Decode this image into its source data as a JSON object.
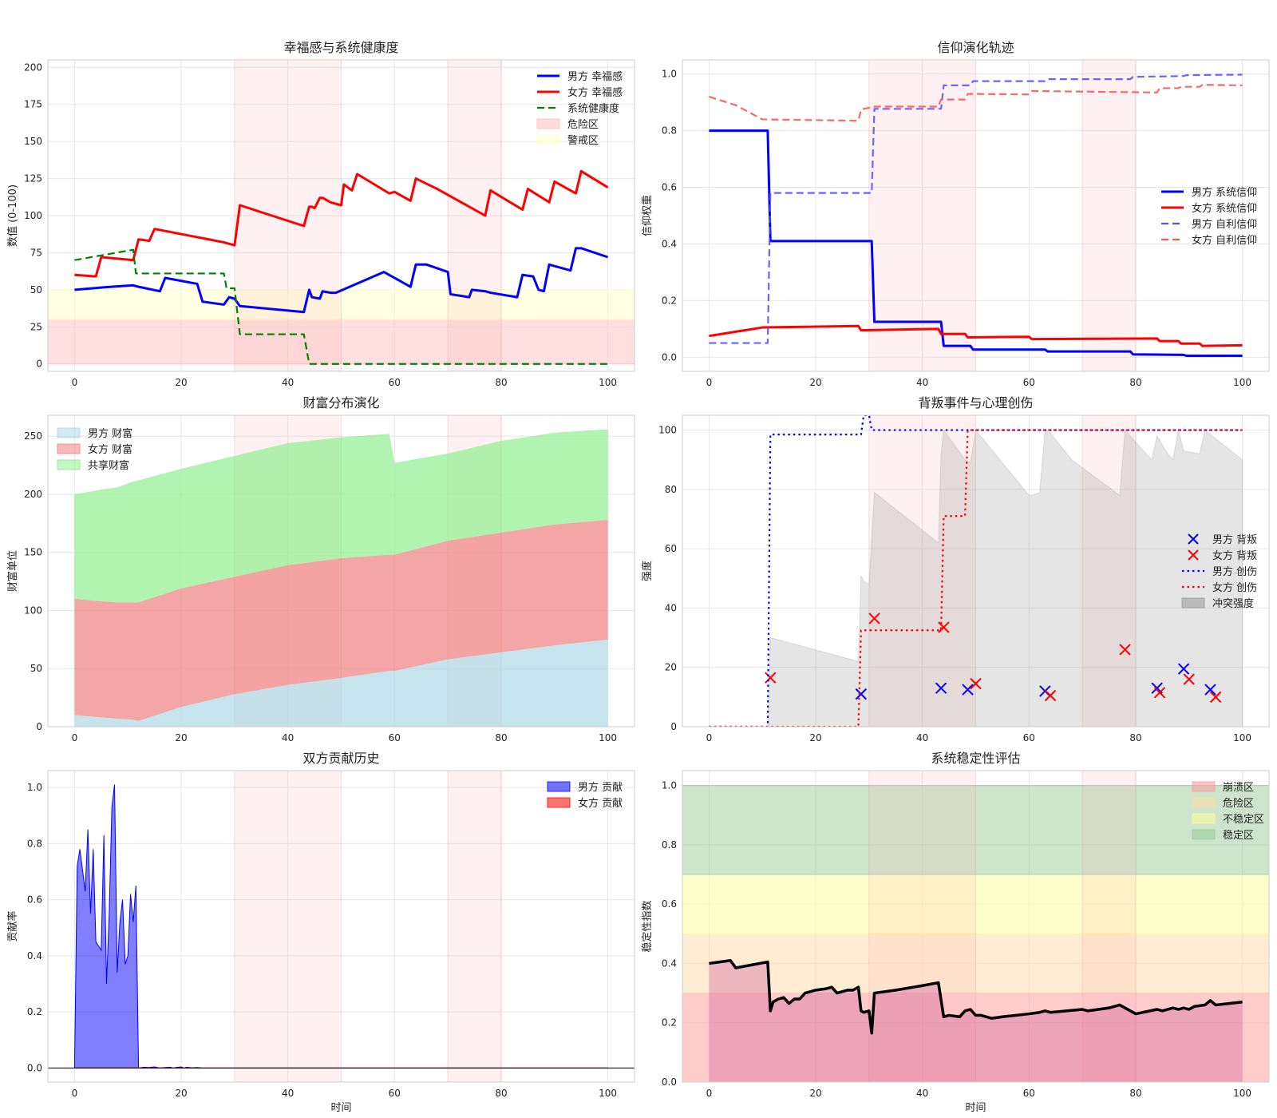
{
  "chart_data": [
    {
      "type": "line",
      "title": "幸福感与系统健康度",
      "xlabel": "",
      "ylabel": "数值 (0-100)",
      "xlim": [
        -5,
        105
      ],
      "ylim": [
        -5,
        205
      ],
      "xticks": [
        0,
        20,
        40,
        60,
        80,
        100
      ],
      "yticks": [
        0,
        25,
        50,
        75,
        100,
        125,
        150,
        175,
        200
      ],
      "grid": true,
      "legend": "top-right",
      "shaded_x_regions": [
        [
          30,
          50
        ],
        [
          70,
          80
        ]
      ],
      "bands": [
        {
          "name": "危险区",
          "y": [
            0,
            30
          ],
          "color": "#ffc0c0"
        },
        {
          "name": "警戒区",
          "y": [
            30,
            50
          ],
          "color": "#ffffc8"
        }
      ],
      "series": [
        {
          "name": "男方 幸福感",
          "color": "#0000ff",
          "style": "solid",
          "x": [
            0,
            5,
            11,
            12,
            16,
            17,
            23,
            24,
            28,
            29,
            30,
            31,
            43,
            44,
            44.5,
            46,
            46.5,
            48,
            49,
            58,
            62,
            63,
            64,
            66,
            70,
            70.5,
            74,
            74.5,
            77,
            78,
            83,
            84,
            86,
            87,
            88,
            89,
            93,
            94,
            95,
            100
          ],
          "y": [
            50,
            51.5,
            53,
            52,
            49,
            58,
            54,
            42,
            40,
            45,
            44,
            39,
            35,
            50,
            45,
            44,
            49,
            48,
            48,
            62,
            54,
            52,
            67,
            67,
            62,
            47,
            45,
            50,
            49,
            48,
            45,
            60,
            59,
            50,
            49,
            67,
            63,
            78,
            78,
            72
          ]
        },
        {
          "name": "女方 幸福感",
          "color": "#ff0000",
          "style": "solid",
          "x": [
            0,
            4,
            5,
            11,
            12,
            14,
            15,
            28,
            29,
            30,
            31,
            43,
            44,
            44.5,
            45,
            46,
            46.5,
            48,
            49,
            50,
            50.5,
            52,
            53,
            59,
            60,
            62,
            63,
            64,
            68,
            77,
            78,
            84,
            85,
            89,
            90,
            94,
            95,
            100
          ],
          "y": [
            60,
            59,
            72,
            70,
            84,
            83,
            91,
            82,
            81,
            80,
            107,
            93,
            106,
            106,
            105,
            112,
            112,
            109,
            108,
            107,
            121,
            117,
            128,
            115,
            116,
            112,
            110,
            125,
            118,
            100,
            117,
            104,
            118,
            109,
            123,
            115,
            130,
            119
          ]
        },
        {
          "name": "系统健康度",
          "color": "#008000",
          "style": "dashed",
          "x": [
            0,
            11,
            11.5,
            28,
            28.5,
            30,
            31,
            43,
            44,
            100
          ],
          "y": [
            70,
            77,
            61,
            61,
            51,
            51,
            20,
            20,
            0,
            0
          ]
        }
      ]
    },
    {
      "type": "line",
      "title": "信仰演化轨迹",
      "xlabel": "",
      "ylabel": "信仰权重",
      "xlim": [
        -5,
        105
      ],
      "ylim": [
        -0.05,
        1.05
      ],
      "xticks": [
        0,
        20,
        40,
        60,
        80,
        100
      ],
      "yticks": [
        0.0,
        0.2,
        0.4,
        0.6,
        0.8,
        1.0
      ],
      "grid": true,
      "legend": "center-right",
      "shaded_x_regions": [
        [
          30,
          50
        ],
        [
          70,
          80
        ]
      ],
      "series": [
        {
          "name": "男方 系统信仰",
          "color": "#0000ff",
          "style": "solid",
          "x": [
            0,
            11,
            11.5,
            30.5,
            31,
            43.5,
            44,
            49,
            49.5,
            63,
            63.5,
            79,
            79.5,
            89,
            89.5,
            100
          ],
          "y": [
            0.8,
            0.8,
            0.41,
            0.41,
            0.125,
            0.125,
            0.04,
            0.04,
            0.027,
            0.027,
            0.02,
            0.02,
            0.01,
            0.008,
            0.005,
            0.005
          ]
        },
        {
          "name": "女方 系统信仰",
          "color": "#ff0000",
          "style": "solid",
          "x": [
            0,
            5,
            10,
            28,
            28.5,
            43,
            43.5,
            48,
            48.5,
            60,
            60.5,
            84,
            84.5,
            88,
            88.5,
            92,
            92.5,
            100
          ],
          "y": [
            0.075,
            0.09,
            0.105,
            0.11,
            0.095,
            0.1,
            0.082,
            0.082,
            0.07,
            0.072,
            0.064,
            0.066,
            0.057,
            0.057,
            0.048,
            0.048,
            0.04,
            0.042
          ]
        },
        {
          "name": "男方 自利信仰",
          "color": "#5555ff",
          "style": "dashed",
          "x": [
            0,
            11,
            11.5,
            30.5,
            31,
            43.5,
            44,
            49,
            49.5,
            63,
            63.5,
            79,
            79.5,
            89,
            89.5,
            100
          ],
          "y": [
            0.05,
            0.05,
            0.58,
            0.58,
            0.877,
            0.877,
            0.96,
            0.96,
            0.975,
            0.975,
            0.982,
            0.982,
            0.99,
            0.993,
            0.996,
            0.998
          ]
        },
        {
          "name": "女方 自利信仰",
          "color": "#ff5555",
          "style": "dashed",
          "x": [
            0,
            5,
            10,
            28,
            28.5,
            31,
            43,
            43.5,
            48,
            48.5,
            60,
            60.5,
            84,
            84.5,
            88,
            88.5,
            92,
            92.5,
            100
          ],
          "y": [
            0.92,
            0.89,
            0.84,
            0.835,
            0.875,
            0.885,
            0.885,
            0.91,
            0.91,
            0.93,
            0.928,
            0.94,
            0.935,
            0.95,
            0.95,
            0.955,
            0.955,
            0.962,
            0.96
          ]
        }
      ]
    },
    {
      "type": "area",
      "title": "财富分布演化",
      "xlabel": "",
      "ylabel": "财富单位",
      "xlim": [
        -5,
        105
      ],
      "ylim": [
        0,
        268
      ],
      "xticks": [
        0,
        20,
        40,
        60,
        80,
        100
      ],
      "yticks": [
        0,
        50,
        100,
        150,
        200,
        250
      ],
      "grid": true,
      "legend": "top-left",
      "shaded_x_regions": [
        [
          30,
          50
        ],
        [
          70,
          80
        ]
      ],
      "stacked": true,
      "x": [
        0,
        5,
        8,
        11,
        12,
        20,
        30,
        40,
        50,
        59,
        60,
        70,
        80,
        90,
        100
      ],
      "series": [
        {
          "name": "男方 财富",
          "color": "#add8e6",
          "values": [
            10,
            8,
            7,
            6,
            5,
            17,
            28,
            36,
            42,
            48,
            48,
            58,
            64,
            70,
            75
          ]
        },
        {
          "name": "女方 财富",
          "color": "#f08080",
          "values": [
            100,
            100,
            100,
            101,
            102,
            102,
            101,
            103,
            103,
            100,
            100,
            102,
            103,
            104,
            103
          ]
        },
        {
          "name": "共享财富",
          "color": "#90ee90",
          "values": [
            90,
            96,
            99,
            104,
            105,
            103,
            104,
            105,
            104,
            104,
            79,
            75,
            79,
            79,
            78
          ]
        }
      ]
    },
    {
      "type": "scatter",
      "title": "背叛事件与心理创伤",
      "xlabel": "",
      "ylabel": "强度",
      "xlim": [
        -5,
        105
      ],
      "ylim": [
        0,
        105
      ],
      "xticks": [
        0,
        20,
        40,
        60,
        80,
        100
      ],
      "yticks": [
        0,
        20,
        40,
        60,
        80,
        100
      ],
      "grid": true,
      "legend": "center-right",
      "shaded_x_regions": [
        [
          30,
          50
        ],
        [
          70,
          80
        ]
      ],
      "conflict_area": {
        "name": "冲突强度",
        "color": "#999999",
        "x": [
          11,
          11.5,
          28,
          28.5,
          29,
          30,
          31,
          43,
          43.5,
          44,
          48,
          49,
          50,
          60,
          60.5,
          62,
          63,
          64,
          68,
          77,
          78,
          83,
          84,
          86,
          87,
          88,
          89,
          92,
          93,
          100
        ],
        "y": [
          0,
          30,
          22,
          51,
          49,
          48,
          79,
          62,
          92,
          100,
          90,
          89,
          100,
          78,
          78,
          79,
          100,
          99,
          90,
          78,
          100,
          90,
          98,
          92,
          90,
          100,
          93,
          92,
          100,
          90
        ]
      },
      "series": [
        {
          "name": "男方 背叛",
          "color": "#0000ff",
          "marker": "x",
          "x": [
            28.5,
            43.5,
            48.5,
            63,
            84,
            89,
            94
          ],
          "y": [
            11,
            13,
            12.5,
            12,
            13,
            19.5,
            12.5
          ]
        },
        {
          "name": "女方 背叛",
          "color": "#ff0000",
          "marker": "x",
          "x": [
            11.5,
            31,
            44,
            50,
            64,
            78,
            84.5,
            90,
            95
          ],
          "y": [
            16.5,
            36.5,
            33.5,
            14.5,
            10.5,
            26,
            11.5,
            16,
            10
          ]
        },
        {
          "name": "男方 创伤",
          "color": "#0000ff",
          "style": "dotted",
          "x": [
            0,
            11,
            11.5,
            28.5,
            29,
            30,
            30.5,
            100
          ],
          "y": [
            0,
            0,
            98.5,
            98.5,
            105,
            105,
            100,
            100
          ]
        },
        {
          "name": "女方 创伤",
          "color": "#ff0000",
          "style": "dotted",
          "x": [
            0,
            28,
            28.5,
            43.5,
            44,
            48,
            48.5,
            100
          ],
          "y": [
            0,
            0,
            32.5,
            32.5,
            71,
            71,
            100,
            100
          ]
        }
      ]
    },
    {
      "type": "area",
      "title": "双方贡献历史",
      "xlabel": "时间",
      "ylabel": "贡献率",
      "xlim": [
        -5,
        105
      ],
      "ylim": [
        -0.05,
        1.06
      ],
      "xticks": [
        0,
        20,
        40,
        60,
        80,
        100
      ],
      "yticks": [
        0.0,
        0.2,
        0.4,
        0.6,
        0.8,
        1.0
      ],
      "grid": true,
      "legend": "top-right",
      "shaded_x_regions": [
        [
          30,
          50
        ],
        [
          70,
          80
        ]
      ],
      "series": [
        {
          "name": "男方 贡献",
          "color": "#0000ff",
          "x": [
            0,
            0.5,
            1,
            2,
            2.5,
            3,
            3.5,
            4,
            5,
            5.5,
            6,
            6.5,
            7,
            7.5,
            8,
            8.5,
            9,
            9.5,
            10,
            10.5,
            11,
            11.5,
            12,
            13,
            14,
            15,
            16,
            17,
            18,
            18.5,
            19,
            20,
            20.5,
            21,
            22,
            23,
            24,
            100
          ],
          "y": [
            0,
            0.72,
            0.78,
            0.63,
            0.85,
            0.55,
            0.78,
            0.45,
            0.42,
            0.83,
            0.3,
            0.55,
            0.93,
            1.01,
            0.34,
            0.52,
            0.6,
            0.37,
            0.4,
            0.62,
            0.52,
            0.65,
            0,
            0.003,
            0.002,
            0.004,
            0,
            0.002,
            0.003,
            0,
            0.002,
            0.004,
            0,
            0.003,
            0.001,
            0.002,
            0,
            0
          ]
        },
        {
          "name": "女方 贡献",
          "color": "#ff0000",
          "x": [
            0,
            100
          ],
          "y": [
            0,
            0
          ]
        }
      ]
    },
    {
      "type": "line",
      "title": "系统稳定性评估",
      "xlabel": "时间",
      "ylabel": "稳定性指数",
      "xlim": [
        -5,
        105
      ],
      "ylim": [
        0,
        1.05
      ],
      "xticks": [
        0,
        20,
        40,
        60,
        80,
        100
      ],
      "yticks": [
        0.0,
        0.2,
        0.4,
        0.6,
        0.8,
        1.0
      ],
      "grid": true,
      "legend": "top-right",
      "shaded_x_regions": [
        [
          30,
          50
        ],
        [
          70,
          80
        ]
      ],
      "bands": [
        {
          "name": "崩溃区",
          "y": [
            0,
            0.3
          ],
          "color": "#ff9999"
        },
        {
          "name": "危险区",
          "y": [
            0.3,
            0.5
          ],
          "color": "#ffd9a6"
        },
        {
          "name": "不稳定区",
          "y": [
            0.5,
            0.7
          ],
          "color": "#ffff99"
        },
        {
          "name": "稳定区",
          "y": [
            0.7,
            1.0
          ],
          "color": "#99cc99"
        }
      ],
      "series": [
        {
          "name": "稳定性指数",
          "color": "#000000",
          "style": "solid",
          "x": [
            0,
            4,
            5,
            11,
            11.5,
            12,
            13,
            14,
            15,
            16,
            17,
            18,
            20,
            22,
            23,
            24,
            26,
            27,
            28,
            28.5,
            29,
            30,
            30.5,
            31,
            35,
            40,
            43,
            44,
            45,
            47,
            48,
            49,
            50,
            51,
            53,
            55,
            60,
            62,
            63,
            64,
            70,
            71,
            75,
            76,
            77,
            80,
            84,
            85,
            87,
            88,
            89,
            90,
            91,
            93,
            94,
            95,
            100
          ],
          "y": [
            0.4,
            0.41,
            0.385,
            0.405,
            0.24,
            0.27,
            0.28,
            0.285,
            0.265,
            0.28,
            0.28,
            0.3,
            0.31,
            0.315,
            0.32,
            0.3,
            0.31,
            0.31,
            0.32,
            0.24,
            0.235,
            0.24,
            0.165,
            0.3,
            0.31,
            0.325,
            0.335,
            0.22,
            0.225,
            0.22,
            0.24,
            0.245,
            0.225,
            0.225,
            0.215,
            0.22,
            0.23,
            0.235,
            0.24,
            0.235,
            0.245,
            0.24,
            0.25,
            0.255,
            0.26,
            0.23,
            0.245,
            0.24,
            0.25,
            0.245,
            0.25,
            0.245,
            0.255,
            0.26,
            0.275,
            0.26,
            0.27
          ]
        }
      ]
    }
  ]
}
